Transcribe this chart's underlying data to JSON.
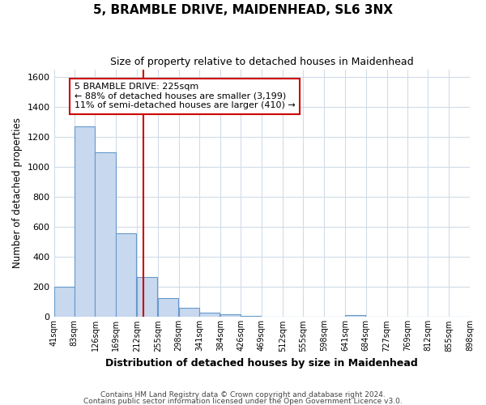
{
  "title1": "5, BRAMBLE DRIVE, MAIDENHEAD, SL6 3NX",
  "title2": "Size of property relative to detached houses in Maidenhead",
  "xlabel": "Distribution of detached houses by size in Maidenhead",
  "ylabel": "Number of detached properties",
  "bin_labels": [
    "41sqm",
    "83sqm",
    "126sqm",
    "169sqm",
    "212sqm",
    "255sqm",
    "298sqm",
    "341sqm",
    "384sqm",
    "426sqm",
    "469sqm",
    "512sqm",
    "555sqm",
    "598sqm",
    "641sqm",
    "684sqm",
    "727sqm",
    "769sqm",
    "812sqm",
    "855sqm",
    "898sqm"
  ],
  "bin_edges": [
    41,
    83,
    126,
    169,
    212,
    255,
    298,
    341,
    384,
    426,
    469,
    512,
    555,
    598,
    641,
    684,
    727,
    769,
    812,
    855,
    898
  ],
  "bar_heights": [
    200,
    1270,
    1100,
    560,
    265,
    125,
    60,
    30,
    20,
    10,
    0,
    0,
    0,
    0,
    15,
    0,
    0,
    0,
    0,
    0
  ],
  "bar_color": "#c8d8ee",
  "bar_edge_color": "#6699cc",
  "vline_x": 225,
  "vline_color": "#cc0000",
  "ylim": [
    0,
    1650
  ],
  "yticks": [
    0,
    200,
    400,
    600,
    800,
    1000,
    1200,
    1400,
    1600
  ],
  "annotation_line1": "5 BRAMBLE DRIVE: 225sqm",
  "annotation_line2": "← 88% of detached houses are smaller (3,199)",
  "annotation_line3": "11% of semi-detached houses are larger (410) →",
  "annotation_box_color": "#ffffff",
  "annotation_box_edge": "#cc0000",
  "footer1": "Contains HM Land Registry data © Crown copyright and database right 2024.",
  "footer2": "Contains public sector information licensed under the Open Government Licence v3.0.",
  "bg_color": "#ffffff",
  "plot_bg_color": "#ffffff",
  "grid_color": "#d0dce8"
}
